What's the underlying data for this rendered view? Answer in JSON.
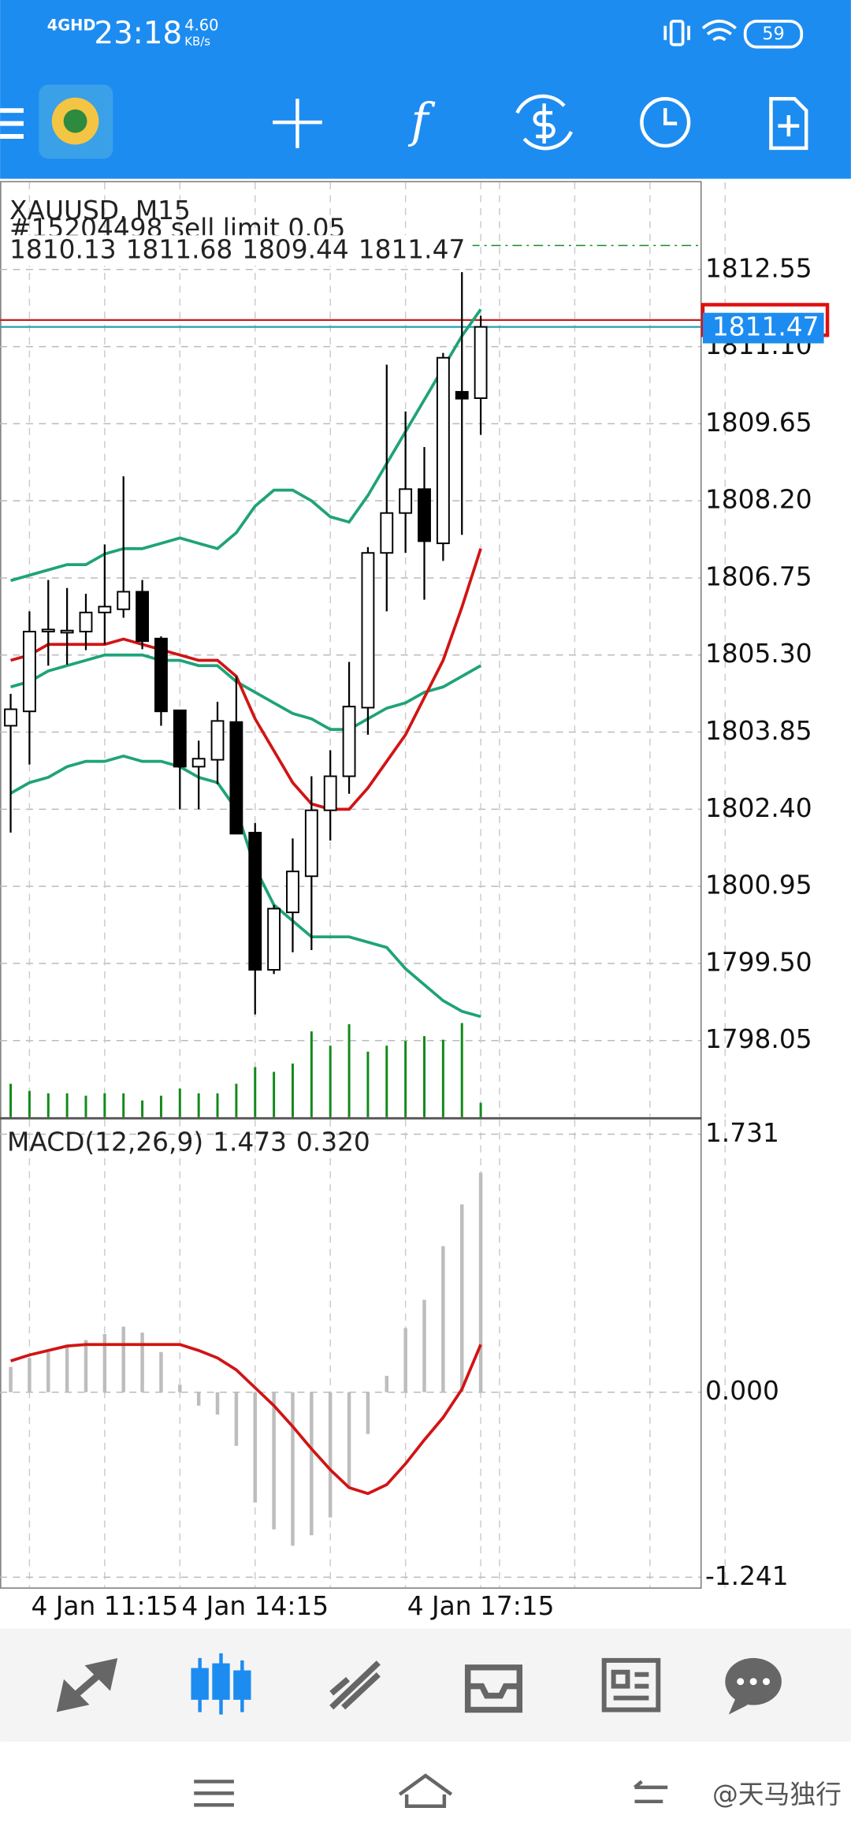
{
  "status_bar": {
    "network": "4GHD",
    "time": "23:18",
    "speed": "4.60",
    "speed_unit": "KB/s",
    "battery": "59"
  },
  "chart_data": [
    {
      "type": "candlestick",
      "title": "XAUUSD, M15",
      "order": "#15204498 sell limit 0.05",
      "categories": [
        null,
        null,
        null,
        null,
        null,
        "4 Jan 11:15",
        null,
        null,
        null,
        null,
        null,
        null,
        null,
        "4 Jan 14:15",
        null,
        null,
        null,
        null,
        null,
        null,
        null,
        null,
        null,
        null,
        null,
        "4 Jan 17:15"
      ],
      "open": [
        1803.97,
        1804.24,
        1805.74,
        1805.72,
        1805.74,
        1806.1,
        1806.16,
        1806.49,
        1805.61,
        1804.26,
        1803.2,
        1803.33,
        1804.04,
        1801.96,
        1799.38,
        1800.46,
        1801.14,
        1802.38,
        1803.02,
        1804.31,
        1807.22,
        1807.97,
        1808.42,
        1807.4,
        1810.25,
        1810.13
      ],
      "high": [
        1804.57,
        1806.12,
        1806.71,
        1806.56,
        1806.45,
        1807.38,
        1808.66,
        1806.71,
        1805.65,
        1804.26,
        1803.69,
        1804.42,
        1804.9,
        1802.14,
        1800.6,
        1801.85,
        1803.02,
        1803.51,
        1805.17,
        1807.33,
        1810.76,
        1809.88,
        1809.21,
        1810.98,
        1812.5,
        1811.68
      ],
      "low": [
        1801.96,
        1803.24,
        1805.1,
        1805.12,
        1805.39,
        1805.5,
        1806.0,
        1805.41,
        1803.97,
        1802.4,
        1802.4,
        1802.87,
        1801.94,
        1798.54,
        1799.3,
        1799.71,
        1799.75,
        1801.81,
        1802.69,
        1803.8,
        1806.12,
        1807.22,
        1806.34,
        1807.07,
        1807.56,
        1809.44
      ],
      "close": [
        1804.28,
        1805.74,
        1805.78,
        1805.76,
        1806.1,
        1806.21,
        1806.49,
        1805.56,
        1804.24,
        1803.2,
        1803.35,
        1804.06,
        1801.94,
        1799.38,
        1800.53,
        1801.23,
        1802.38,
        1803.02,
        1804.33,
        1807.22,
        1807.97,
        1808.42,
        1807.44,
        1810.89,
        1810.12,
        1811.47
      ],
      "bands": [
        {
          "color": "#1fa378",
          "values": [
            1806.7,
            1806.8,
            1806.9,
            1807.0,
            1807.0,
            1807.2,
            1807.3,
            1807.3,
            1807.4,
            1807.5,
            1807.4,
            1807.3,
            1807.6,
            1808.1,
            1808.4,
            1808.4,
            1808.2,
            1807.9,
            1807.8,
            1808.3,
            1808.9,
            1809.5,
            1810.1,
            1810.7,
            1811.3,
            1811.8
          ]
        },
        {
          "color": "#1fa378",
          "values": [
            1804.7,
            1804.8,
            1805.0,
            1805.1,
            1805.2,
            1805.3,
            1805.3,
            1805.3,
            1805.2,
            1805.2,
            1805.1,
            1805.1,
            1804.8,
            1804.6,
            1804.4,
            1804.2,
            1804.1,
            1803.9,
            1803.9,
            1804.1,
            1804.3,
            1804.4,
            1804.6,
            1804.7,
            1804.9,
            1805.1
          ]
        },
        {
          "color": "#1fa378",
          "values": [
            1802.7,
            1802.9,
            1803.0,
            1803.2,
            1803.3,
            1803.3,
            1803.4,
            1803.3,
            1803.3,
            1803.2,
            1803.0,
            1802.9,
            1802.4,
            1801.3,
            1800.6,
            1800.3,
            1800.0,
            1800.0,
            1800.0,
            1799.9,
            1799.8,
            1799.4,
            1799.1,
            1798.8,
            1798.6,
            1798.5
          ]
        }
      ],
      "moving_average": {
        "color": "#d11414",
        "values": [
          1805.2,
          1805.3,
          1805.5,
          1805.5,
          1805.5,
          1805.5,
          1805.6,
          1805.5,
          1805.4,
          1805.3,
          1805.2,
          1805.2,
          1804.9,
          1804.1,
          1803.5,
          1802.9,
          1802.5,
          1802.4,
          1802.4,
          1802.8,
          1803.3,
          1803.8,
          1804.5,
          1805.2,
          1806.2,
          1807.3
        ]
      },
      "volumes": [
        28,
        22,
        20,
        20,
        18,
        20,
        20,
        14,
        18,
        24,
        20,
        20,
        28,
        42,
        38,
        45,
        72,
        60,
        78,
        55,
        60,
        64,
        68,
        65,
        79,
        12
      ],
      "volume_color": "#138a1a",
      "ask_line": 1811.6,
      "sell_limit_line": 1813.0,
      "ylim": [
        1796.61,
        1814.19
      ],
      "yticks": [
        1812.55,
        {
          "value": 1811.1,
          "label": "1811.10"
        },
        1809.65,
        {
          "value": 1808.2,
          "label": "1808.20"
        },
        1806.75,
        {
          "value": 1805.3,
          "label": "1805.30"
        },
        1803.85,
        {
          "value": 1802.4,
          "label": "1802.40"
        },
        1800.95,
        {
          "value": 1799.5,
          "label": "1799.50"
        },
        1798.05
      ],
      "grid": true
    },
    {
      "type": "macd",
      "title": "MACD(12,26,9)",
      "main_label": "1.473",
      "signal_label": "0.320",
      "histogram": [
        0.17,
        0.23,
        0.27,
        0.31,
        0.35,
        0.39,
        0.44,
        0.4,
        0.27,
        0.05,
        -0.09,
        -0.15,
        -0.36,
        -0.74,
        -0.92,
        -1.03,
        -0.96,
        -0.84,
        -0.64,
        -0.28,
        0.11,
        0.43,
        0.62,
        0.98,
        1.26,
        1.473
      ],
      "histogram_color": "#bdbdbd",
      "signal": [
        0.21,
        0.25,
        0.28,
        0.31,
        0.32,
        0.32,
        0.32,
        0.32,
        0.32,
        0.32,
        0.28,
        0.23,
        0.15,
        0.03,
        -0.09,
        -0.23,
        -0.38,
        -0.52,
        -0.64,
        -0.68,
        -0.62,
        -0.48,
        -0.32,
        -0.17,
        0.02,
        0.32
      ],
      "signal_color": "#d11414",
      "ylim": [
        -1.31,
        1.83
      ],
      "yticks": [
        1.731,
        {
          "value": 0,
          "label": "0.000"
        },
        -1.241
      ],
      "grid": true
    }
  ],
  "watermark": "@天马独行"
}
